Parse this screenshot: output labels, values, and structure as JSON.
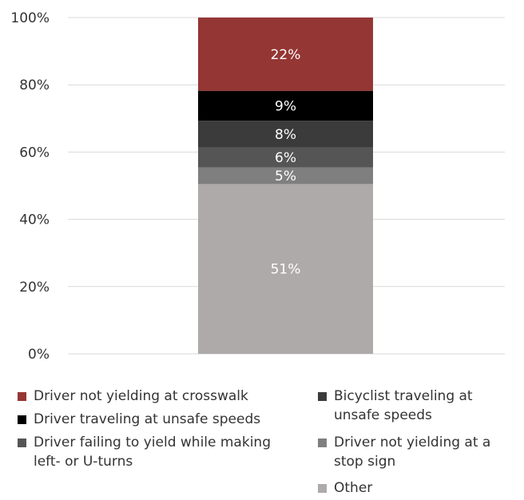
{
  "chart_data": {
    "type": "bar",
    "stacked": true,
    "categories": [
      ""
    ],
    "ylim": [
      0,
      100
    ],
    "yticks": [
      0,
      20,
      40,
      60,
      80,
      100
    ],
    "ytick_labels": [
      "0%",
      "20%",
      "40%",
      "60%",
      "80%",
      "100%"
    ],
    "grid": true,
    "legend_position": "bottom",
    "series": [
      {
        "name": "Other",
        "values": [
          51
        ],
        "label": "51%",
        "color": "#aeaaaa"
      },
      {
        "name": "Driver not yielding at a stop sign",
        "values": [
          5
        ],
        "label": "5%",
        "color": "#7f7f7f"
      },
      {
        "name": "Driver failing to yield while making left- or U-turns",
        "values": [
          6
        ],
        "label": "6%",
        "color": "#555555"
      },
      {
        "name": "Bicyclist traveling at unsafe speeds",
        "values": [
          8
        ],
        "label": "8%",
        "color": "#3b3b3b"
      },
      {
        "name": "Driver traveling at unsafe speeds",
        "values": [
          9
        ],
        "label": "9%",
        "color": "#000000"
      },
      {
        "name": "Driver not yielding at crosswalk",
        "values": [
          22
        ],
        "label": "22%",
        "color": "#943634"
      }
    ]
  },
  "legend": {
    "items": [
      {
        "label": "Driver not yielding at crosswalk",
        "color": "#943634"
      },
      {
        "label": "Driver traveling at unsafe speeds",
        "color": "#000000"
      },
      {
        "label": "Driver failing to yield while making left- or U-turns",
        "color": "#555555"
      },
      {
        "label": "Bicyclist traveling at unsafe speeds",
        "color": "#3b3b3b"
      },
      {
        "label": "Driver not yielding at a stop sign",
        "color": "#7f7f7f"
      },
      {
        "label": "Other",
        "color": "#aeaaaa"
      }
    ]
  }
}
